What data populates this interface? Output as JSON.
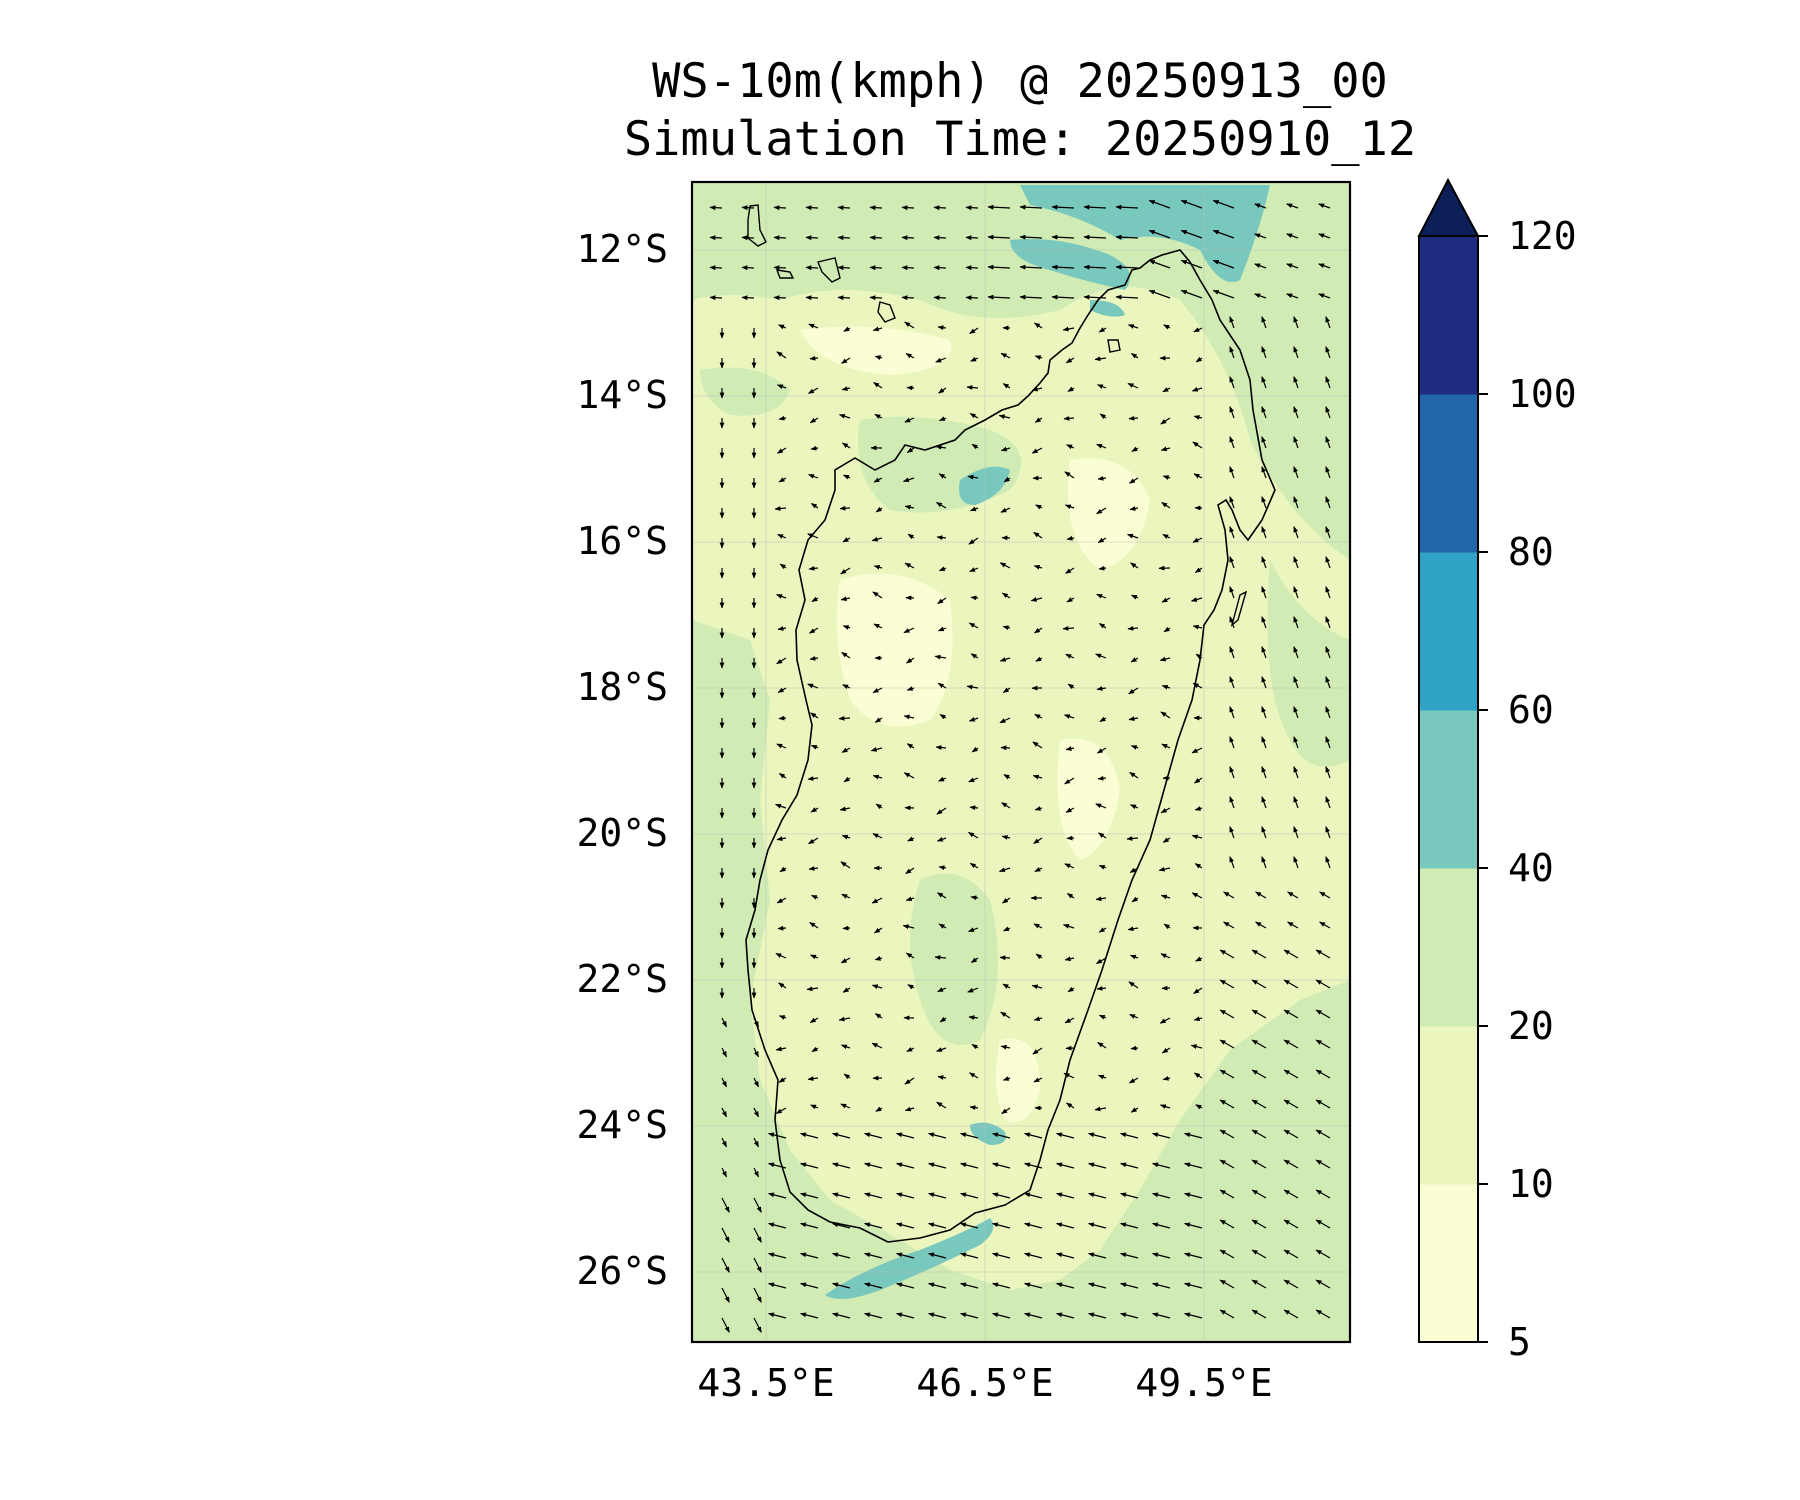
{
  "title": {
    "line1": "WS-10m(kmph) @ 20250913_00",
    "line2": "Simulation Time: 20250910_12"
  },
  "map": {
    "region": "Madagascar",
    "lon_range": [
      42.5,
      51.5
    ],
    "lat_range": [
      -27,
      -11
    ],
    "lat_ticks": [
      {
        "value": -12,
        "label": "12°S"
      },
      {
        "value": -14,
        "label": "14°S"
      },
      {
        "value": -16,
        "label": "16°S"
      },
      {
        "value": -18,
        "label": "18°S"
      },
      {
        "value": -20,
        "label": "20°S"
      },
      {
        "value": -22,
        "label": "22°S"
      },
      {
        "value": -24,
        "label": "24°S"
      },
      {
        "value": -26,
        "label": "26°S"
      }
    ],
    "lon_ticks": [
      {
        "value": 43.5,
        "label": "43.5°E"
      },
      {
        "value": 46.5,
        "label": "46.5°E"
      },
      {
        "value": 49.5,
        "label": "49.5°E"
      }
    ],
    "gridlines": true,
    "background_fill_color": "#eaf6be"
  },
  "colorbar": {
    "extend": "max",
    "levels": [
      {
        "value": 5,
        "label": "5"
      },
      {
        "value": 10,
        "label": "10"
      },
      {
        "value": 20,
        "label": "20"
      },
      {
        "value": 40,
        "label": "40"
      },
      {
        "value": 60,
        "label": "60"
      },
      {
        "value": 80,
        "label": "80"
      },
      {
        "value": 100,
        "label": "100"
      },
      {
        "value": 120,
        "label": "120"
      }
    ],
    "colors": [
      "#fbfed4",
      "#eaf6be",
      "#d0ebb3",
      "#79c8bd",
      "#2fa2c6",
      "#2066ab",
      "#1e2c82"
    ],
    "extend_color": "#0c1f59"
  }
}
